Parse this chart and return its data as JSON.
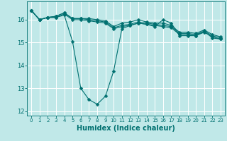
{
  "title": "",
  "xlabel": "Humidex (Indice chaleur)",
  "bg_color": "#c0e8e8",
  "grid_color": "#ffffff",
  "line_color": "#007070",
  "xlim": [
    -0.5,
    23.5
  ],
  "ylim": [
    11.8,
    16.8
  ],
  "yticks": [
    12,
    13,
    14,
    15,
    16
  ],
  "xticks": [
    0,
    1,
    2,
    3,
    4,
    5,
    6,
    7,
    8,
    9,
    10,
    11,
    12,
    13,
    14,
    15,
    16,
    17,
    18,
    19,
    20,
    21,
    22,
    23
  ],
  "series": [
    [
      16.4,
      16.0,
      16.1,
      16.1,
      16.2,
      15.05,
      13.0,
      12.5,
      12.3,
      12.65,
      13.75,
      15.6,
      15.75,
      15.85,
      15.8,
      15.7,
      16.0,
      15.85,
      15.3,
      15.3,
      15.3,
      15.5,
      15.2,
      15.15
    ],
    [
      16.4,
      16.0,
      16.1,
      16.1,
      16.25,
      16.0,
      16.0,
      15.95,
      15.9,
      15.85,
      15.6,
      15.7,
      15.75,
      15.85,
      15.8,
      15.75,
      15.7,
      15.65,
      15.35,
      15.35,
      15.3,
      15.45,
      15.25,
      15.15
    ],
    [
      16.4,
      16.0,
      16.1,
      16.15,
      16.3,
      16.05,
      16.05,
      16.0,
      15.95,
      15.9,
      15.65,
      15.75,
      15.8,
      15.9,
      15.85,
      15.8,
      15.75,
      15.7,
      15.4,
      15.4,
      15.35,
      15.5,
      15.3,
      15.2
    ],
    [
      16.4,
      16.0,
      16.1,
      16.15,
      16.3,
      16.05,
      16.05,
      16.05,
      16.0,
      15.95,
      15.7,
      15.85,
      15.9,
      16.0,
      15.9,
      15.85,
      15.85,
      15.75,
      15.45,
      15.45,
      15.4,
      15.55,
      15.35,
      15.25
    ]
  ],
  "xlabel_fontsize": 7,
  "tick_fontsize": 5,
  "marker_size": 2.5
}
